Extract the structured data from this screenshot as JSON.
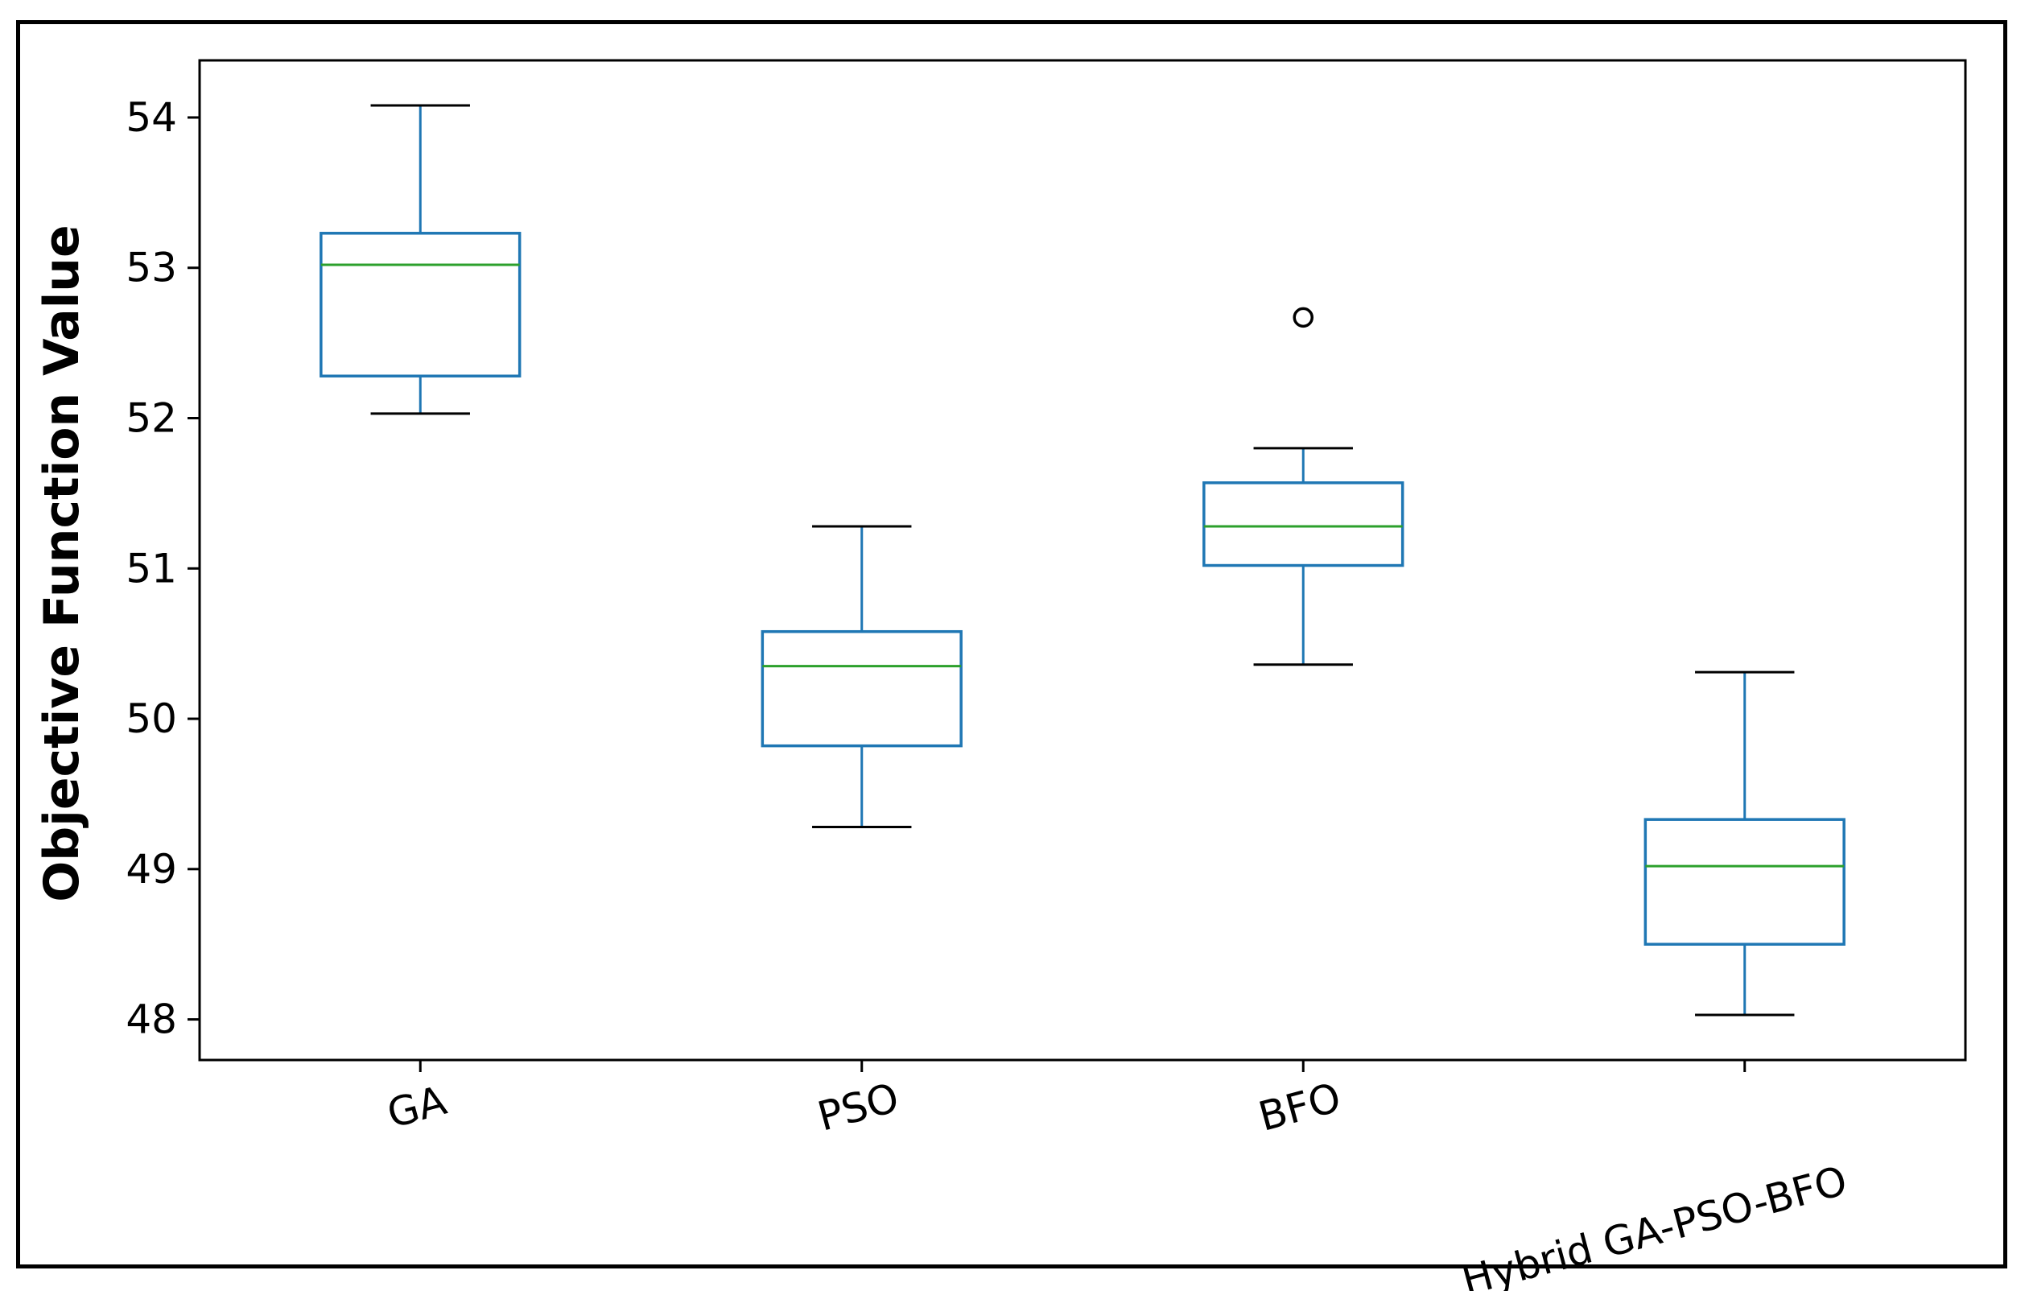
{
  "chart_data": {
    "type": "box",
    "title": "",
    "xlabel": "",
    "ylabel": "Objective Function Value",
    "ylim": [
      47.73,
      54.38
    ],
    "yticks": [
      48,
      49,
      50,
      51,
      52,
      53,
      54
    ],
    "grid": false,
    "categories": [
      "GA",
      "PSO",
      "BFO",
      "Hybrid GA-PSO-BFO"
    ],
    "boxes": [
      {
        "label": "GA",
        "whisker_low": 52.03,
        "q1": 52.28,
        "median": 53.02,
        "q3": 53.23,
        "whisker_high": 54.08,
        "outliers": []
      },
      {
        "label": "PSO",
        "whisker_low": 49.28,
        "q1": 49.82,
        "median": 50.35,
        "q3": 50.58,
        "whisker_high": 51.28,
        "outliers": []
      },
      {
        "label": "BFO",
        "whisker_low": 50.36,
        "q1": 51.02,
        "median": 51.28,
        "q3": 51.57,
        "whisker_high": 51.8,
        "outliers": [
          52.67
        ]
      },
      {
        "label": "Hybrid GA-PSO-BFO",
        "whisker_low": 48.03,
        "q1": 48.5,
        "median": 49.02,
        "q3": 49.33,
        "whisker_high": 50.31,
        "outliers": []
      }
    ],
    "colors": {
      "box": "#1f77b4",
      "median": "#2ca02c",
      "whisker_cap": "#000000",
      "outlier": "#000000",
      "axes": "#000000"
    }
  }
}
